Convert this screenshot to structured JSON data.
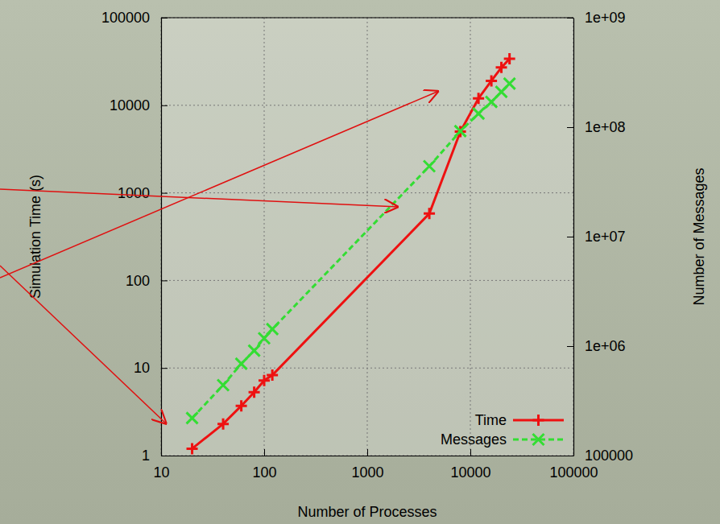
{
  "chart_data": {
    "type": "line",
    "log": true,
    "grid": true,
    "legend": "bottom-right",
    "x_label": "Number of Processes",
    "y_label": "Simulation Time (s)",
    "y2_label": "Number of Messages",
    "x": [
      20,
      40,
      60,
      80,
      100,
      120,
      4000,
      8000,
      12000,
      16000,
      20000,
      24000
    ],
    "xlim": [
      10,
      100000
    ],
    "xticks": [
      10,
      100,
      1000,
      10000,
      100000
    ],
    "ylim": [
      1,
      100000
    ],
    "yticks": [
      1,
      10,
      100,
      1000,
      10000,
      100000
    ],
    "y2lim": [
      100000,
      1000000000
    ],
    "y2ticks": [
      100000,
      {
        "value": 1000000,
        "label": "1e+06"
      },
      {
        "value": 10000000,
        "label": "1e+07"
      },
      {
        "value": 100000000,
        "label": "1e+08"
      },
      {
        "value": 1000000000,
        "label": "1e+09"
      }
    ],
    "series": [
      {
        "name": "Time",
        "color": "#ee1111",
        "marker": "plus",
        "line_style": "solid",
        "values": [
          1.2,
          2.3,
          3.7,
          5.3,
          7.2,
          8.3,
          580,
          5000,
          12000,
          19000,
          27000,
          34000
        ]
      },
      {
        "name": "Messages",
        "color": "#33dd33",
        "marker": "cross",
        "line_style": "dashed",
        "axis": "y2",
        "values": [
          220000,
          440000,
          690000,
          910000,
          1180000,
          1430000,
          44000000,
          92000000,
          133000000,
          170000000,
          210000000,
          250000000
        ]
      }
    ]
  }
}
